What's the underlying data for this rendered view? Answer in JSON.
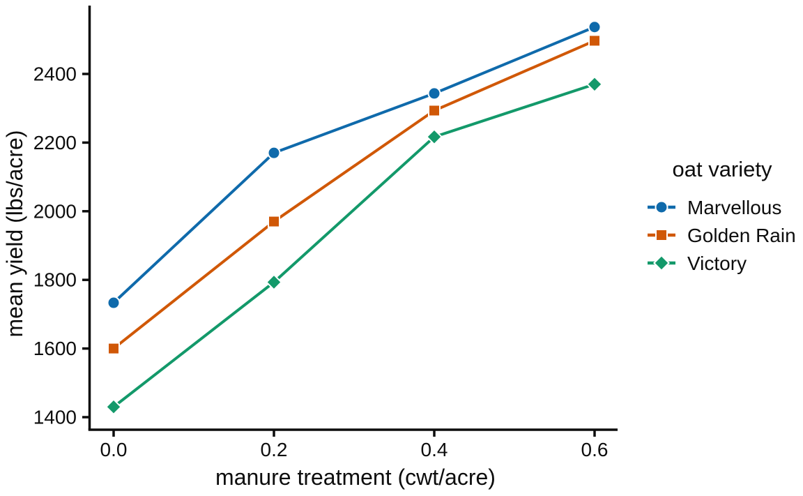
{
  "chart_data": {
    "type": "line",
    "title": "",
    "xlabel": "manure treatment (cwt/acre)",
    "ylabel": "mean yield (lbs/acre)",
    "legend_title": "oat variety",
    "legend_position": "right-outside",
    "grid": false,
    "x": [
      0.0,
      0.2,
      0.4,
      0.6
    ],
    "xtick_labels": [
      "0.0",
      "0.2",
      "0.4",
      "0.6"
    ],
    "ytick_values": [
      1400,
      1600,
      1800,
      2000,
      2200,
      2400
    ],
    "ytick_labels": [
      "1400",
      "1600",
      "1800",
      "2000",
      "2200",
      "2400"
    ],
    "xlim": [
      -0.03,
      0.63
    ],
    "ylim": [
      1363,
      2596
    ],
    "series": [
      {
        "name": "Marvellous",
        "marker": "circle",
        "color": "#0f6aab",
        "values": [
          1733.3,
          2170.0,
          2343.3,
          2536.7
        ]
      },
      {
        "name": "Golden Rain",
        "marker": "square",
        "color": "#d05807",
        "values": [
          1600.0,
          1970.0,
          2293.3,
          2496.7
        ]
      },
      {
        "name": "Victory",
        "marker": "diamond",
        "color": "#13996a",
        "values": [
          1430.0,
          1793.3,
          2216.7,
          2370.0
        ]
      }
    ],
    "style": {
      "axis_color": "#0d0d0d",
      "text_color": "#0d0d0d",
      "marker_edge_color": "#ffffff"
    }
  }
}
